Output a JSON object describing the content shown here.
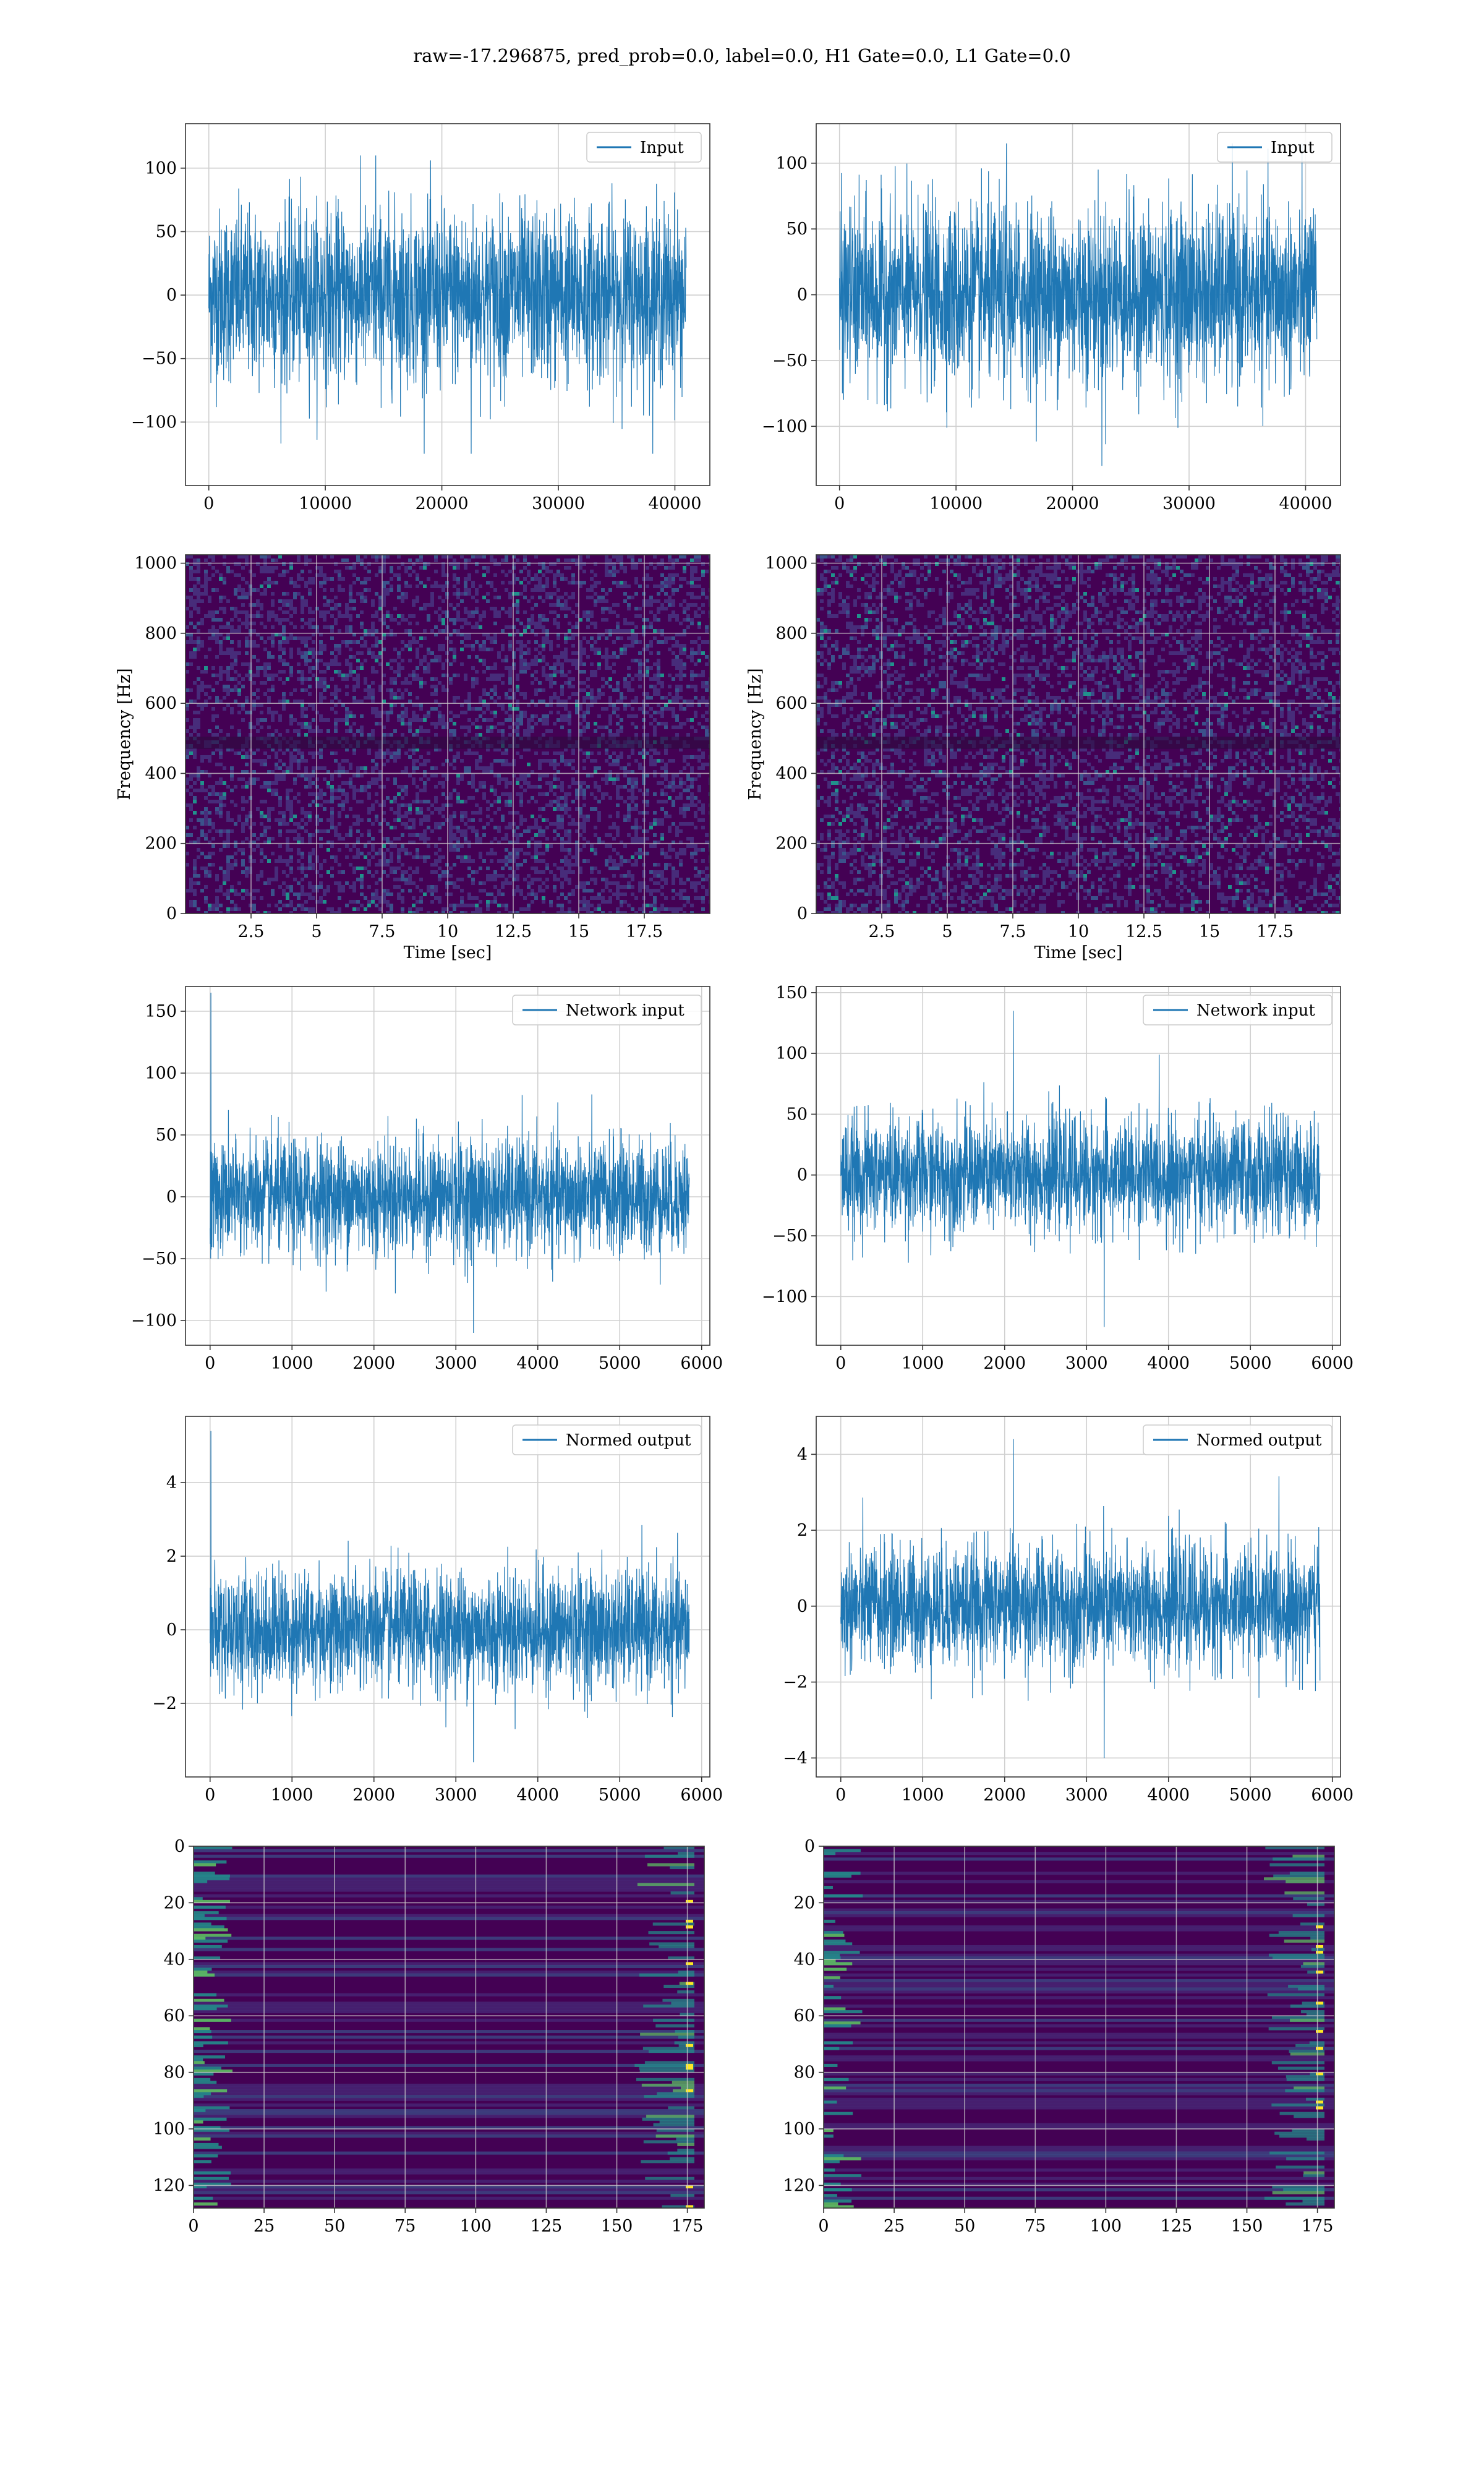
{
  "figure": {
    "title": "raw=-17.296875, pred_prob=0.0, label=0.0, H1 Gate=0.0, L1 Gate=0.0"
  },
  "colors": {
    "line": "#1f77b4",
    "grid": "#d0d0d0",
    "spine": "#333333",
    "viridis_low": "#440154",
    "viridis_mid": "#3b528b",
    "viridis_teal": "#21918c",
    "viridis_green": "#5ec962",
    "viridis_high": "#fde725"
  },
  "chart_data": [
    {
      "id": "input-h1",
      "type": "line",
      "xlabel": "",
      "ylabel": "",
      "series": [
        {
          "name": "Input",
          "x_range": [
            0,
            40960
          ],
          "baseline": 0,
          "typical_amplitude": 80,
          "extremes": [
            110,
            -125
          ]
        }
      ],
      "xlim": [
        -2000,
        43000
      ],
      "ylim": [
        -150,
        135
      ],
      "xticks": [
        0,
        10000,
        20000,
        30000,
        40000
      ],
      "yticks": [
        -100,
        -50,
        0,
        50,
        100
      ],
      "grid": true,
      "legend": "top-right"
    },
    {
      "id": "input-l1",
      "type": "line",
      "xlabel": "",
      "ylabel": "",
      "series": [
        {
          "name": "Input",
          "x_range": [
            0,
            40960
          ],
          "baseline": 0,
          "typical_amplitude": 80,
          "extremes": [
            115,
            -130
          ]
        }
      ],
      "xlim": [
        -2000,
        43000
      ],
      "ylim": [
        -145,
        130
      ],
      "xticks": [
        0,
        10000,
        20000,
        30000,
        40000
      ],
      "yticks": [
        -100,
        -50,
        0,
        50,
        100
      ],
      "grid": true,
      "legend": "top-right"
    },
    {
      "id": "spectrogram-h1",
      "type": "heatmap",
      "xlabel": "Time [sec]",
      "ylabel": "Frequency [Hz]",
      "xlim": [
        0,
        20
      ],
      "ylim": [
        0,
        1024
      ],
      "xticks": [
        2.5,
        5.0,
        7.5,
        10.0,
        12.5,
        15.0,
        17.5
      ],
      "yticks": [
        0,
        200,
        400,
        600,
        800,
        1000
      ],
      "grid": true
    },
    {
      "id": "spectrogram-l1",
      "type": "heatmap",
      "xlabel": "Time [sec]",
      "ylabel": "Frequency [Hz]",
      "xlim": [
        0,
        20
      ],
      "ylim": [
        0,
        1024
      ],
      "xticks": [
        2.5,
        5.0,
        7.5,
        10.0,
        12.5,
        15.0,
        17.5
      ],
      "yticks": [
        0,
        200,
        400,
        600,
        800,
        1000
      ],
      "grid": true
    },
    {
      "id": "network-input-h1",
      "type": "line",
      "xlabel": "",
      "ylabel": "",
      "series": [
        {
          "name": "Network input",
          "x_range": [
            0,
            5850
          ],
          "baseline": 0,
          "typical_amplitude": 55,
          "extremes": [
            165,
            -110
          ]
        }
      ],
      "xlim": [
        -300,
        6100
      ],
      "ylim": [
        -120,
        170
      ],
      "xticks": [
        0,
        1000,
        2000,
        3000,
        4000,
        5000,
        6000
      ],
      "yticks": [
        -100,
        -50,
        0,
        50,
        100,
        150
      ],
      "grid": true,
      "legend": "top-right"
    },
    {
      "id": "network-input-l1",
      "type": "line",
      "xlabel": "",
      "ylabel": "",
      "series": [
        {
          "name": "Network input",
          "x_range": [
            0,
            5850
          ],
          "baseline": 0,
          "typical_amplitude": 55,
          "extremes": [
            135,
            -125
          ]
        }
      ],
      "xlim": [
        -300,
        6100
      ],
      "ylim": [
        -140,
        155
      ],
      "xticks": [
        0,
        1000,
        2000,
        3000,
        4000,
        5000,
        6000
      ],
      "yticks": [
        -100,
        -50,
        0,
        50,
        100,
        150
      ],
      "grid": true,
      "legend": "top-right"
    },
    {
      "id": "normed-output-h1",
      "type": "line",
      "xlabel": "",
      "ylabel": "",
      "series": [
        {
          "name": "Normed output",
          "x_range": [
            0,
            5850
          ],
          "baseline": 0,
          "typical_amplitude": 1.9,
          "extremes": [
            5.4,
            -3.6
          ]
        }
      ],
      "xlim": [
        -300,
        6100
      ],
      "ylim": [
        -4.0,
        5.8
      ],
      "xticks": [
        0,
        1000,
        2000,
        3000,
        4000,
        5000,
        6000
      ],
      "yticks": [
        -2,
        0,
        2,
        4
      ],
      "grid": true,
      "legend": "top-right"
    },
    {
      "id": "normed-output-l1",
      "type": "line",
      "xlabel": "",
      "ylabel": "",
      "series": [
        {
          "name": "Normed output",
          "x_range": [
            0,
            5850
          ],
          "baseline": 0,
          "typical_amplitude": 1.9,
          "extremes": [
            4.4,
            -4.0
          ]
        }
      ],
      "xlim": [
        -300,
        6100
      ],
      "ylim": [
        -4.5,
        5.0
      ],
      "xticks": [
        0,
        1000,
        2000,
        3000,
        4000,
        5000,
        6000
      ],
      "yticks": [
        -4,
        -2,
        0,
        2,
        4
      ],
      "grid": true,
      "legend": "top-right"
    },
    {
      "id": "feature-map-h1",
      "type": "heatmap",
      "xlabel": "",
      "ylabel": "",
      "xlim": [
        0,
        181
      ],
      "ylim": [
        128,
        0
      ],
      "xticks": [
        0,
        25,
        50,
        75,
        100,
        125,
        150,
        175
      ],
      "yticks": [
        0,
        20,
        40,
        60,
        80,
        100,
        120
      ],
      "grid": true
    },
    {
      "id": "feature-map-l1",
      "type": "heatmap",
      "xlabel": "",
      "ylabel": "",
      "xlim": [
        0,
        181
      ],
      "ylim": [
        128,
        0
      ],
      "xticks": [
        0,
        25,
        50,
        75,
        100,
        125,
        150,
        175
      ],
      "yticks": [
        0,
        20,
        40,
        60,
        80,
        100,
        120
      ],
      "grid": true
    }
  ]
}
